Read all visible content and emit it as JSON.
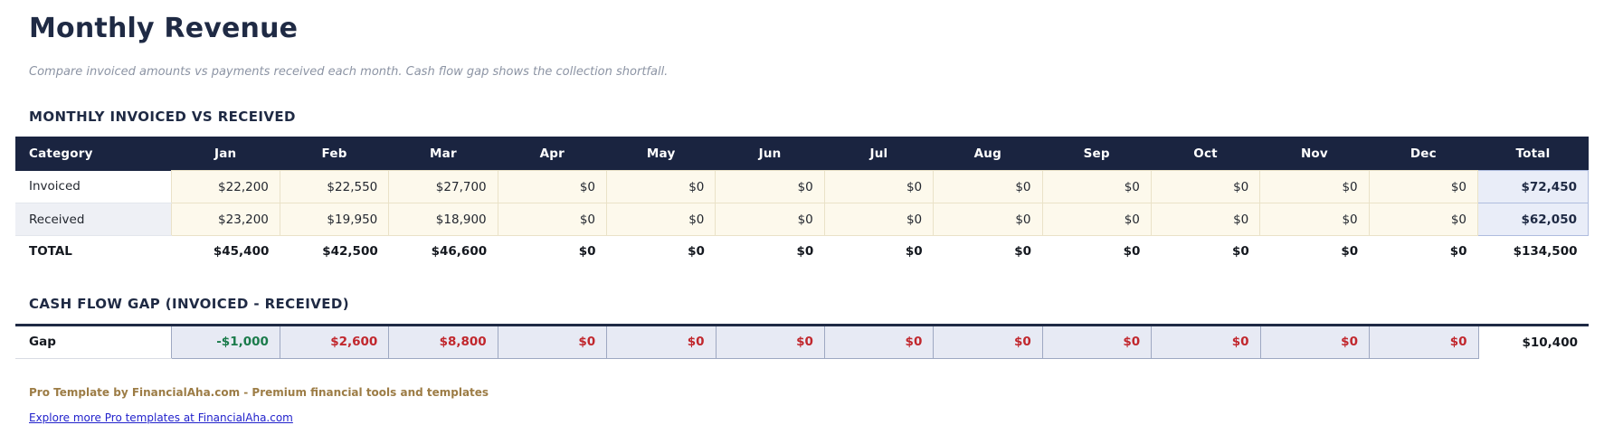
{
  "page": {
    "title": "Monthly Revenue",
    "subtitle": "Compare invoiced amounts vs payments received each month. Cash flow gap shows the collection shortfall."
  },
  "main_table": {
    "section_title": "MONTHLY INVOICED VS RECEIVED",
    "columns": [
      "Category",
      "Jan",
      "Feb",
      "Mar",
      "Apr",
      "May",
      "Jun",
      "Jul",
      "Aug",
      "Sep",
      "Oct",
      "Nov",
      "Dec",
      "Total"
    ],
    "rows": [
      {
        "category": "Invoiced",
        "values": [
          "$22,200",
          "$22,550",
          "$27,700",
          "$0",
          "$0",
          "$0",
          "$0",
          "$0",
          "$0",
          "$0",
          "$0",
          "$0"
        ],
        "total": "$72,450"
      },
      {
        "category": "Received",
        "values": [
          "$23,200",
          "$19,950",
          "$18,900",
          "$0",
          "$0",
          "$0",
          "$0",
          "$0",
          "$0",
          "$0",
          "$0",
          "$0"
        ],
        "total": "$62,050"
      }
    ],
    "total_row": {
      "category": "TOTAL",
      "values": [
        "$45,400",
        "$42,500",
        "$46,600",
        "$0",
        "$0",
        "$0",
        "$0",
        "$0",
        "$0",
        "$0",
        "$0",
        "$0"
      ],
      "total": "$134,500"
    }
  },
  "gap_table": {
    "section_title": "CASH FLOW GAP (INVOICED - RECEIVED)",
    "row_label": "Gap",
    "cells": [
      {
        "text": "-$1,000",
        "state": "neg"
      },
      {
        "text": "$2,600",
        "state": "pos"
      },
      {
        "text": "$8,800",
        "state": "pos"
      },
      {
        "text": "$0",
        "state": "pos"
      },
      {
        "text": "$0",
        "state": "pos"
      },
      {
        "text": "$0",
        "state": "pos"
      },
      {
        "text": "$0",
        "state": "pos"
      },
      {
        "text": "$0",
        "state": "pos"
      },
      {
        "text": "$0",
        "state": "pos"
      },
      {
        "text": "$0",
        "state": "pos"
      },
      {
        "text": "$0",
        "state": "pos"
      },
      {
        "text": "$0",
        "state": "pos"
      }
    ],
    "total": "$10,400"
  },
  "footer": {
    "brand_text": "Pro Template by FinancialAha.com - Premium financial tools and templates",
    "link_text": "Explore more Pro templates at FinancialAha.com"
  },
  "colors": {
    "table_header_bg": "#1A2440",
    "month_cell_bg": "#FDF9EC",
    "total_column_bg": "#E9EDF8",
    "gap_cell_bg": "#E7EAF4",
    "gap_negative_text": "#1B7B4B",
    "gap_positive_text": "#C1272D",
    "brand_text": "#9C7C45",
    "link_text": "#2222CC"
  }
}
